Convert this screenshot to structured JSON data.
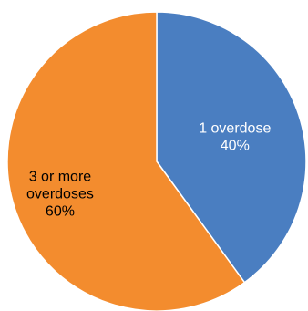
{
  "chart_data": {
    "type": "pie",
    "slices": [
      {
        "label_lines": [
          "1 overdose"
        ],
        "percent_label": "40%",
        "value": 40,
        "color": "#4a7ec1",
        "label_color": "#ffffff"
      },
      {
        "label_lines": [
          "3 or more",
          "overdoses"
        ],
        "percent_label": "60%",
        "value": 60,
        "color": "#f38c2e",
        "label_color": "#000000"
      }
    ]
  }
}
